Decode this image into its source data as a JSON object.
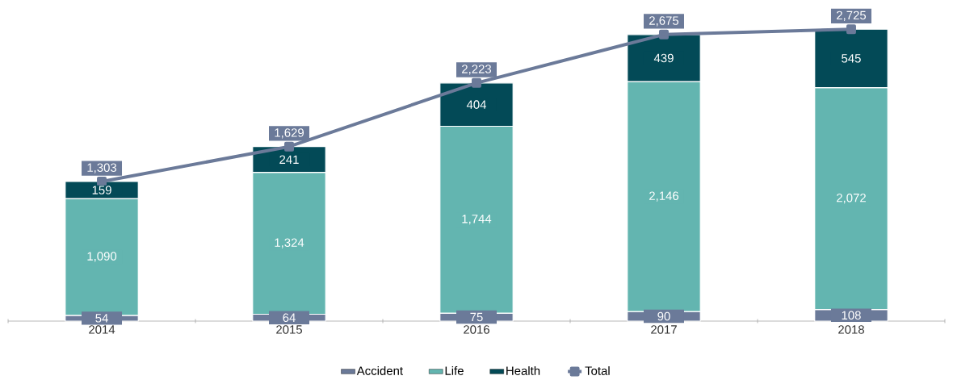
{
  "chart_data": {
    "type": "bar",
    "stacked": true,
    "categories": [
      "2014",
      "2015",
      "2016",
      "2017",
      "2018"
    ],
    "series": [
      {
        "name": "Accident",
        "color": "#6b7a99",
        "values": [
          54,
          64,
          75,
          90,
          108
        ],
        "value_labels": [
          "54",
          "64",
          "75",
          "90",
          "108"
        ]
      },
      {
        "name": "Life",
        "color": "#63b5b0",
        "values": [
          1090,
          1324,
          1744,
          2146,
          2072
        ],
        "value_labels": [
          "1,090",
          "1,324",
          "1,744",
          "2,146",
          "2,072"
        ]
      },
      {
        "name": "Health",
        "color": "#034a57",
        "values": [
          159,
          241,
          404,
          439,
          545
        ],
        "value_labels": [
          "159",
          "241",
          "404",
          "439",
          "545"
        ]
      },
      {
        "type": "line",
        "name": "Total",
        "color": "#6b7a99",
        "values": [
          1303,
          1629,
          2223,
          2675,
          2725
        ],
        "value_labels": [
          "1,303",
          "1,629",
          "2,223",
          "2,675",
          "2,725"
        ]
      }
    ],
    "legend": "bottom",
    "marker": "square"
  }
}
